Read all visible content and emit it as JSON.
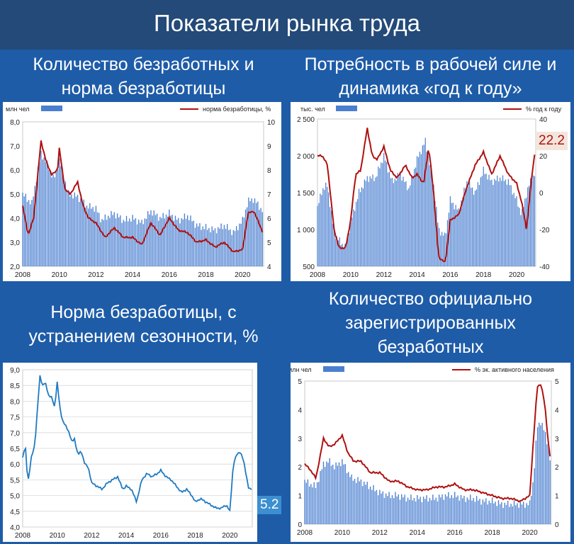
{
  "page": {
    "title": "Показатели рынка труда"
  },
  "panels": [
    {
      "title_lines": [
        "Количество безработных и",
        "норма безработицы"
      ]
    },
    {
      "title_lines": [
        "Потребность в рабочей силе и",
        "динамика «год к году»"
      ]
    },
    {
      "title_lines": [
        "Норма безработицы, с",
        "устранением сезонности, %"
      ]
    },
    {
      "title_lines": [
        "Количество официально",
        "зарегистрированных",
        "безработных"
      ]
    }
  ],
  "colors": {
    "bar": "#4a7fd0",
    "line_red": "#b01010",
    "line_blue": "#1f7ac2",
    "title_bg": "#234a78",
    "page_bg": "#1e5ca8"
  },
  "chart_data": [
    {
      "type": "bar+line",
      "legend_bar": "млн чел",
      "legend_line": "норма безработицы, %",
      "x_ticks": [
        2008,
        2010,
        2012,
        2014,
        2016,
        2018,
        2020
      ],
      "xlim": [
        2008,
        2021.15
      ],
      "y_left_ticks": [
        "2,0",
        "3,0",
        "4,0",
        "5,0",
        "6,0",
        "7,0",
        "8,0"
      ],
      "y_left_lim": [
        2,
        8
      ],
      "y_right_ticks": [
        "4",
        "5",
        "6",
        "7",
        "8",
        "9",
        "10"
      ],
      "y_right_lim": [
        4,
        10
      ],
      "bars_millions": {
        "x": [
          2008,
          2008.5,
          2009,
          2009.3,
          2009.7,
          2010,
          2010.3,
          2010.5,
          2011,
          2011.5,
          2012,
          2012.3,
          2012.7,
          2013,
          2013.5,
          2014,
          2014.5,
          2015,
          2015.5,
          2016,
          2016.5,
          2017,
          2017.5,
          2018,
          2018.5,
          2019,
          2019.5,
          2020,
          2020.3,
          2020.6,
          2020.9,
          2021.1
        ],
        "values": [
          5.0,
          4.6,
          6.7,
          6.3,
          5.6,
          6.4,
          5.6,
          5.0,
          4.9,
          4.5,
          4.4,
          3.9,
          4.1,
          4.2,
          3.9,
          4.0,
          3.8,
          4.3,
          4.0,
          4.2,
          3.9,
          4.1,
          3.7,
          3.6,
          3.5,
          3.7,
          3.4,
          3.9,
          4.7,
          4.8,
          4.5,
          4.3
        ]
      },
      "line_percent": {
        "x": [
          2008,
          2008.3,
          2008.6,
          2009,
          2009.3,
          2009.6,
          2009.9,
          2010,
          2010.3,
          2010.6,
          2011,
          2011.3,
          2011.6,
          2012,
          2012.5,
          2013,
          2013.5,
          2014,
          2014.5,
          2015,
          2015.5,
          2016,
          2016.5,
          2017,
          2017.5,
          2018,
          2018.5,
          2019,
          2019.5,
          2020,
          2020.3,
          2020.6,
          2020.9,
          2021.1
        ],
        "values": [
          6.5,
          5.3,
          6.0,
          9.2,
          8.3,
          7.8,
          8.0,
          8.9,
          7.2,
          7.0,
          7.5,
          6.5,
          6.0,
          5.8,
          5.2,
          5.6,
          5.2,
          5.2,
          4.9,
          5.8,
          5.3,
          6.0,
          5.5,
          5.4,
          5.0,
          5.1,
          4.8,
          5.0,
          4.6,
          4.7,
          6.2,
          6.3,
          5.8,
          5.4
        ]
      }
    },
    {
      "type": "bar+line",
      "legend_bar": "тыс. чел",
      "legend_line": "% год к году",
      "x_ticks": [
        2008,
        2010,
        2012,
        2014,
        2016,
        2018,
        2020
      ],
      "xlim": [
        2008,
        2021.15
      ],
      "y_left_ticks": [
        "500",
        "1 000",
        "1 500",
        "2 000",
        "2 500"
      ],
      "y_left_lim": [
        500,
        2500
      ],
      "y_right_ticks": [
        "-40",
        "-20",
        "0",
        "20",
        "40"
      ],
      "y_right_lim": [
        -40,
        40
      ],
      "last_value_label": "22.2",
      "bars_thousands": {
        "x": [
          2008,
          2008.3,
          2008.6,
          2009,
          2009.3,
          2009.7,
          2010,
          2010.5,
          2011,
          2011.5,
          2012,
          2012.5,
          2013,
          2013.5,
          2014,
          2014.5,
          2015,
          2015.3,
          2015.7,
          2016,
          2016.5,
          2017,
          2017.5,
          2018,
          2018.5,
          2019,
          2019.5,
          2020,
          2020.3,
          2020.6,
          2020.9,
          2021.1
        ],
        "values": [
          1300,
          1550,
          1600,
          950,
          850,
          750,
          1100,
          1500,
          1700,
          1700,
          2000,
          1650,
          1750,
          1550,
          1950,
          2200,
          1600,
          1000,
          900,
          1400,
          1250,
          1650,
          1500,
          1800,
          1650,
          1700,
          1650,
          1400,
          1200,
          1500,
          1700,
          1750
        ]
      },
      "line_percent": {
        "x": [
          2008,
          2008.3,
          2008.6,
          2009,
          2009.3,
          2009.7,
          2010,
          2010.3,
          2010.6,
          2011,
          2011.3,
          2011.6,
          2012,
          2012.4,
          2012.8,
          2013.3,
          2013.7,
          2014,
          2014.4,
          2014.7,
          2015,
          2015.3,
          2015.7,
          2016,
          2016.5,
          2017,
          2017.5,
          2018,
          2018.5,
          2019,
          2019.5,
          2020,
          2020.3,
          2020.6,
          2020.9,
          2021.1
        ],
        "values": [
          20,
          20,
          15,
          -20,
          -30,
          -30,
          -15,
          10,
          12,
          35,
          20,
          18,
          25,
          12,
          8,
          15,
          8,
          10,
          5,
          25,
          0,
          -35,
          -38,
          -15,
          -12,
          3,
          15,
          22,
          10,
          20,
          10,
          5,
          -5,
          -20,
          8,
          22
        ]
      }
    },
    {
      "type": "line",
      "x_ticks": [
        2008,
        2010,
        2012,
        2014,
        2016,
        2018,
        2020
      ],
      "xlim": [
        2008,
        2021.3
      ],
      "y_ticks": [
        "4,0",
        "4,5",
        "5,0",
        "5,5",
        "6,0",
        "6,5",
        "7,0",
        "7,5",
        "8,0",
        "8,5",
        "9,0"
      ],
      "ylim": [
        4,
        9
      ],
      "last_value_label": "5.2",
      "line_percent": {
        "x": [
          2008,
          2008.15,
          2008.3,
          2008.5,
          2008.7,
          2009,
          2009.15,
          2009.3,
          2009.5,
          2009.7,
          2009.85,
          2010,
          2010.15,
          2010.3,
          2010.5,
          2010.7,
          2010.85,
          2011,
          2011.2,
          2011.4,
          2011.6,
          2011.8,
          2012,
          2012.3,
          2012.6,
          2012.9,
          2013.2,
          2013.5,
          2013.8,
          2014,
          2014.3,
          2014.6,
          2014.9,
          2015.2,
          2015.5,
          2015.8,
          2016,
          2016.3,
          2016.6,
          2016.9,
          2017.2,
          2017.5,
          2017.8,
          2018,
          2018.3,
          2018.6,
          2018.9,
          2019.2,
          2019.5,
          2019.8,
          2020,
          2020.2,
          2020.4,
          2020.6,
          2020.8,
          2021,
          2021.1
        ],
        "values": [
          6.2,
          6.6,
          5.4,
          6.2,
          6.6,
          8.8,
          8.5,
          8.6,
          8.2,
          8.1,
          7.8,
          8.6,
          7.8,
          7.4,
          7.2,
          7.0,
          6.7,
          6.8,
          6.3,
          6.4,
          6.0,
          5.9,
          5.4,
          5.3,
          5.2,
          5.4,
          5.5,
          5.6,
          5.2,
          5.3,
          5.2,
          4.8,
          5.5,
          5.7,
          5.6,
          5.7,
          5.8,
          5.6,
          5.5,
          5.3,
          5.1,
          5.2,
          5.0,
          4.8,
          4.9,
          4.8,
          4.7,
          4.6,
          4.6,
          4.7,
          4.5,
          6.0,
          6.3,
          6.4,
          6.1,
          5.5,
          5.2
        ]
      }
    },
    {
      "type": "bar+line",
      "legend_bar": "млн чел",
      "legend_line": "%  эк. активного населения",
      "x_ticks": [
        2008,
        2010,
        2012,
        2014,
        2016,
        2018,
        2020
      ],
      "xlim": [
        2008,
        2021.15
      ],
      "y_left_ticks": [
        "0",
        "1",
        "2",
        "3",
        "4",
        "5"
      ],
      "y_left_lim": [
        0,
        5
      ],
      "y_right_ticks": [
        "0",
        "1",
        "2",
        "3",
        "4",
        "5"
      ],
      "y_right_lim": [
        0,
        5
      ],
      "bars_millions": {
        "x": [
          2008,
          2008.3,
          2008.6,
          2009,
          2009.3,
          2009.6,
          2010,
          2010.5,
          2011,
          2011.5,
          2012,
          2012.5,
          2013,
          2013.5,
          2014,
          2014.5,
          2015,
          2015.5,
          2016,
          2016.5,
          2017,
          2017.5,
          2018,
          2018.5,
          2019,
          2019.5,
          2020,
          2020.2,
          2020.4,
          2020.6,
          2020.8,
          2021,
          2021.1
        ],
        "values": [
          1.5,
          1.4,
          1.3,
          2.1,
          2.2,
          2.0,
          2.2,
          1.6,
          1.5,
          1.3,
          1.1,
          1.0,
          1.0,
          0.9,
          0.9,
          0.9,
          0.9,
          1.0,
          1.0,
          0.9,
          0.9,
          0.8,
          0.8,
          0.7,
          0.7,
          0.7,
          0.7,
          1.6,
          3.4,
          3.6,
          3.2,
          2.7,
          2.2
        ]
      },
      "line_percent": {
        "x": [
          2008,
          2008.3,
          2008.6,
          2009,
          2009.3,
          2009.6,
          2010,
          2010.3,
          2010.6,
          2011,
          2011.5,
          2012,
          2012.5,
          2013,
          2013.5,
          2014,
          2014.5,
          2015,
          2015.5,
          2016,
          2016.5,
          2017,
          2017.5,
          2018,
          2018.5,
          2019,
          2019.5,
          2020,
          2020.2,
          2020.4,
          2020.6,
          2020.8,
          2021,
          2021.1
        ],
        "values": [
          2.1,
          1.9,
          1.6,
          3.0,
          2.7,
          2.8,
          3.1,
          2.5,
          2.2,
          2.2,
          1.8,
          1.8,
          1.5,
          1.5,
          1.3,
          1.2,
          1.2,
          1.3,
          1.3,
          1.4,
          1.2,
          1.2,
          1.1,
          1.0,
          0.9,
          0.9,
          0.8,
          1.0,
          3.0,
          4.8,
          4.9,
          4.2,
          2.8,
          2.3
        ]
      }
    }
  ]
}
